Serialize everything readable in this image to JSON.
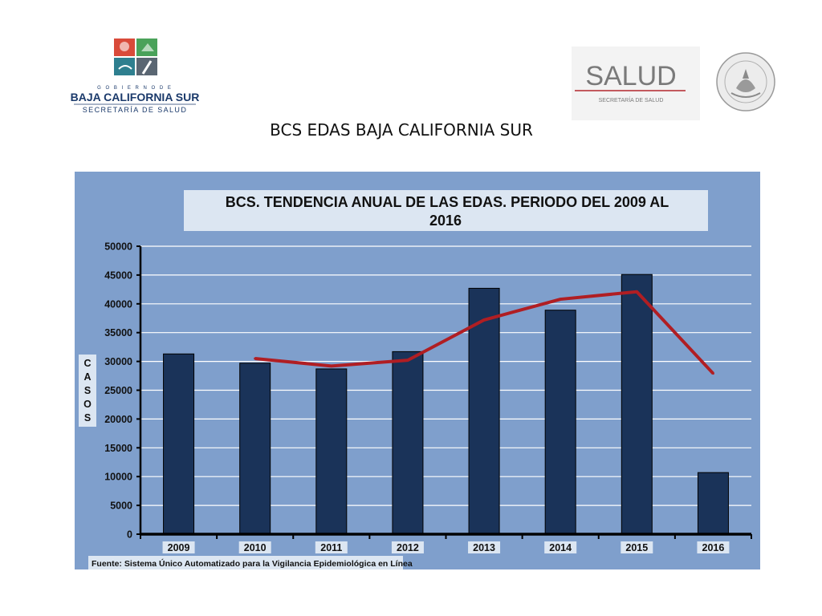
{
  "header": {
    "left_logo": {
      "line1": "G O B I E R N O   D E",
      "line2": "BAJA CALIFORNIA SUR",
      "line3": "SECRETARÍA DE SALUD",
      "colors": {
        "navy": "#1b3a6b",
        "teal": "#2e7f8f",
        "red": "#d94a3a",
        "green": "#4aa25a"
      }
    },
    "right_logo": {
      "word": "SALUD",
      "subtitle": "SECRETARÍA DE SALUD",
      "seal_text": "ESTADOS UNIDOS MEXICANOS",
      "colors": {
        "gray": "#7a7a7a",
        "red": "#b3272d"
      }
    }
  },
  "slide_title": "BCS EDAS BAJA CALIFORNIA SUR",
  "chart_data": {
    "type": "bar",
    "title": "BCS. TENDENCIA ANUAL DE LAS EDAS. PERIODO DEL 2009 AL 2016",
    "title_lines": [
      "BCS. TENDENCIA ANUAL DE LAS EDAS. PERIODO DEL 2009 AL",
      "2016"
    ],
    "ylabel": "CASOS",
    "ylabel_letters": [
      "C",
      "A",
      "S",
      "O",
      "S"
    ],
    "xlabel": "",
    "categories": [
      "2009",
      "2010",
      "2011",
      "2012",
      "2013",
      "2014",
      "2015",
      "2016"
    ],
    "series": [
      {
        "kind": "bar",
        "values": [
          31300,
          29700,
          28700,
          31700,
          42700,
          38900,
          45100,
          10700
        ],
        "color": "#1a3359"
      },
      {
        "kind": "line",
        "values": [
          null,
          30500,
          29200,
          30200,
          37200,
          40800,
          42100,
          27900
        ],
        "color": "#b01e23"
      }
    ],
    "ylim": [
      0,
      50000
    ],
    "yticks": [
      0,
      5000,
      10000,
      15000,
      20000,
      25000,
      30000,
      35000,
      40000,
      45000,
      50000
    ],
    "grid": true,
    "legend": "none",
    "background_color": "#7f9fcc",
    "source_note": "Fuente: Sistema Único Automatizado para la Vigilancia Epidemiológica en Línea"
  }
}
